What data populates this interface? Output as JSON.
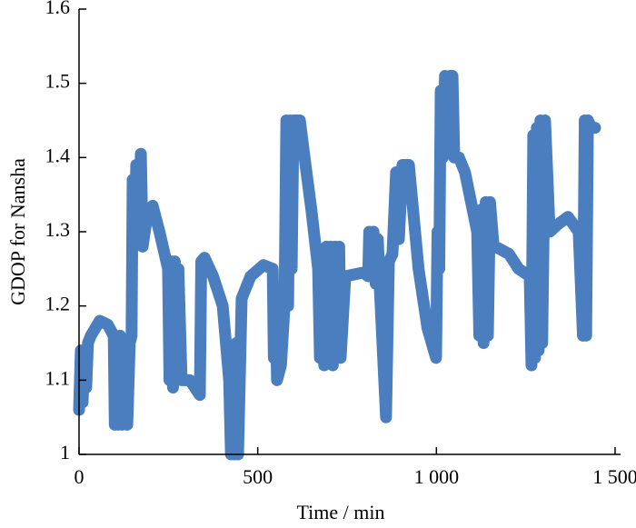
{
  "chart_data": {
    "type": "line",
    "x_label": "Time / min",
    "y_label": "GDOP for Nansha",
    "xlim": [
      0,
      1500
    ],
    "xticks": [
      0,
      500,
      {
        "value": 1000,
        "label": "1 000"
      },
      {
        "value": 1500,
        "label": "1 500"
      }
    ],
    "ylim": [
      1,
      1.6
    ],
    "yticks": [
      1,
      1.1,
      1.2,
      1.3,
      1.4,
      1.5,
      1.6
    ],
    "grid": false,
    "series": [
      {
        "color": "#4a7ebf",
        "x": [
          0,
          5,
          10,
          15,
          20,
          25,
          33,
          58,
          80,
          97,
          100,
          105,
          110,
          115,
          120,
          128,
          135,
          142,
          147,
          150,
          155,
          160,
          165,
          173,
          178,
          190,
          206,
          225,
          249,
          253,
          258,
          263,
          268,
          273,
          278,
          287,
          310,
          338,
          342,
          351,
          375,
          402,
          420,
          425,
          430,
          435,
          440,
          445,
          455,
          480,
          516,
          542,
          545,
          550,
          554,
          565,
          575,
          580,
          585,
          590,
          595,
          600,
          618,
          631,
          650,
          669,
          674,
          680,
          686,
          692,
          698,
          704,
          710,
          716,
          722,
          728,
          732,
          745,
          796,
          809,
          812,
          818,
          824,
          830,
          836,
          842,
          859,
          867,
          877,
          887,
          895,
          905,
          923,
          950,
          975,
          999,
          1003,
          1008,
          1012,
          1018,
          1024,
          1030,
          1038,
          1045,
          1050,
          1063,
          1080,
          1114,
          1120,
          1126,
          1132,
          1138,
          1144,
          1150,
          1160,
          1165,
          1203,
          1230,
          1261,
          1266,
          1271,
          1276,
          1281,
          1286,
          1291,
          1296,
          1304,
          1317,
          1340,
          1368,
          1398,
          1410,
          1415,
          1419,
          1424,
          1434,
          1444
        ],
        "values": [
          1.06,
          1.14,
          1.07,
          1.14,
          1.09,
          1.15,
          1.16,
          1.18,
          1.175,
          1.16,
          1.04,
          1.15,
          1.04,
          1.16,
          1.04,
          1.15,
          1.04,
          1.15,
          1.16,
          1.37,
          1.28,
          1.39,
          1.29,
          1.405,
          1.28,
          1.32,
          1.335,
          1.3,
          1.25,
          1.1,
          1.26,
          1.09,
          1.26,
          1.1,
          1.25,
          1.1,
          1.1,
          1.08,
          1.26,
          1.265,
          1.24,
          1.2,
          1.1,
          1.0,
          1.14,
          1.0,
          1.15,
          1.0,
          1.21,
          1.24,
          1.255,
          1.25,
          1.13,
          1.2,
          1.1,
          1.12,
          1.2,
          1.45,
          1.2,
          1.45,
          1.25,
          1.45,
          1.45,
          1.4,
          1.33,
          1.25,
          1.13,
          1.27,
          1.12,
          1.28,
          1.13,
          1.28,
          1.12,
          1.28,
          1.13,
          1.28,
          1.13,
          1.24,
          1.245,
          1.24,
          1.3,
          1.24,
          1.3,
          1.23,
          1.29,
          1.22,
          1.05,
          1.26,
          1.27,
          1.38,
          1.29,
          1.39,
          1.39,
          1.25,
          1.17,
          1.13,
          1.3,
          1.25,
          1.49,
          1.4,
          1.51,
          1.42,
          1.51,
          1.51,
          1.4,
          1.4,
          1.38,
          1.3,
          1.16,
          1.33,
          1.15,
          1.34,
          1.16,
          1.34,
          1.28,
          1.28,
          1.27,
          1.25,
          1.24,
          1.12,
          1.43,
          1.13,
          1.44,
          1.14,
          1.45,
          1.15,
          1.45,
          1.3,
          1.31,
          1.32,
          1.3,
          1.16,
          1.45,
          1.16,
          1.45,
          1.44,
          1.44
        ]
      }
    ]
  }
}
